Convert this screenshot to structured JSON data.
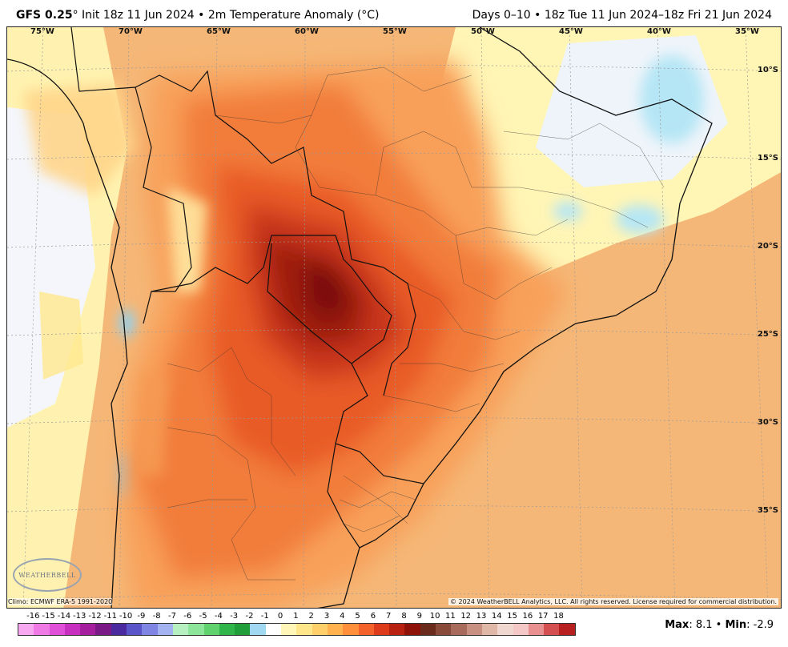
{
  "header": {
    "model": "GFS 0.25",
    "degree_mark": "°",
    "init": " Init 18z 11 Jun 2024 • 2m Temperature Anomaly (",
    "unit_deg": "°",
    "unit_c": "C)",
    "right": "Days 0–10 • 18z Tue 11 Jun 2024–18z Fri 21 Jun 2024"
  },
  "axes": {
    "lon_labels": [
      "75°W",
      "70°W",
      "65°W",
      "60°W",
      "55°W",
      "50°W",
      "45°W",
      "40°W",
      "35°W"
    ],
    "lat_labels": [
      "10°S",
      "15°S",
      "20°S",
      "25°S",
      "30°S",
      "35°S"
    ]
  },
  "footer": {
    "clim": "Climo: ECMWF ERA-5 1991-2020",
    "copyright": "© 2024 WeatherBELL Analytics, LLC. All rights reserved. License required for commercial distribution.",
    "logo": "WEATHERBELL",
    "max_label": "Max",
    "max_value": ": 8.1 • ",
    "min_label": "Min",
    "min_value": ": -2.9"
  },
  "legend": {
    "labels": [
      "-16",
      "-15",
      "-14",
      "-13",
      "-12",
      "-11",
      "-10",
      "-9",
      "-8",
      "-7",
      "-6",
      "-5",
      "-4",
      "-3",
      "-2",
      "-1",
      "0",
      "1",
      "2",
      "3",
      "4",
      "5",
      "6",
      "7",
      "8",
      "9",
      "10",
      "11",
      "12",
      "13",
      "14",
      "15",
      "16",
      "17",
      "18"
    ],
    "colors": [
      "#f7a8f0",
      "#ef7ae6",
      "#e04fd8",
      "#c72fbf",
      "#a51e9e",
      "#7a1a86",
      "#4a2a9e",
      "#5a55c9",
      "#7f85e3",
      "#a3b2f0",
      "#b7f0c0",
      "#8de59a",
      "#5fd16d",
      "#2fb54a",
      "#1f9e3a",
      "#9fd8f0",
      "#ffffff",
      "#fff6b8",
      "#ffe68a",
      "#ffd06a",
      "#ffb24d",
      "#ff8f3a",
      "#f4612a",
      "#dd3a1c",
      "#b8200f",
      "#8f1208",
      "#6a2a1c",
      "#8a4a3a",
      "#a86a5a",
      "#c89080",
      "#e0b8a8",
      "#f0d8d0",
      "#f5c8c8",
      "#e89090",
      "#d45050",
      "#b82020"
    ]
  }
}
